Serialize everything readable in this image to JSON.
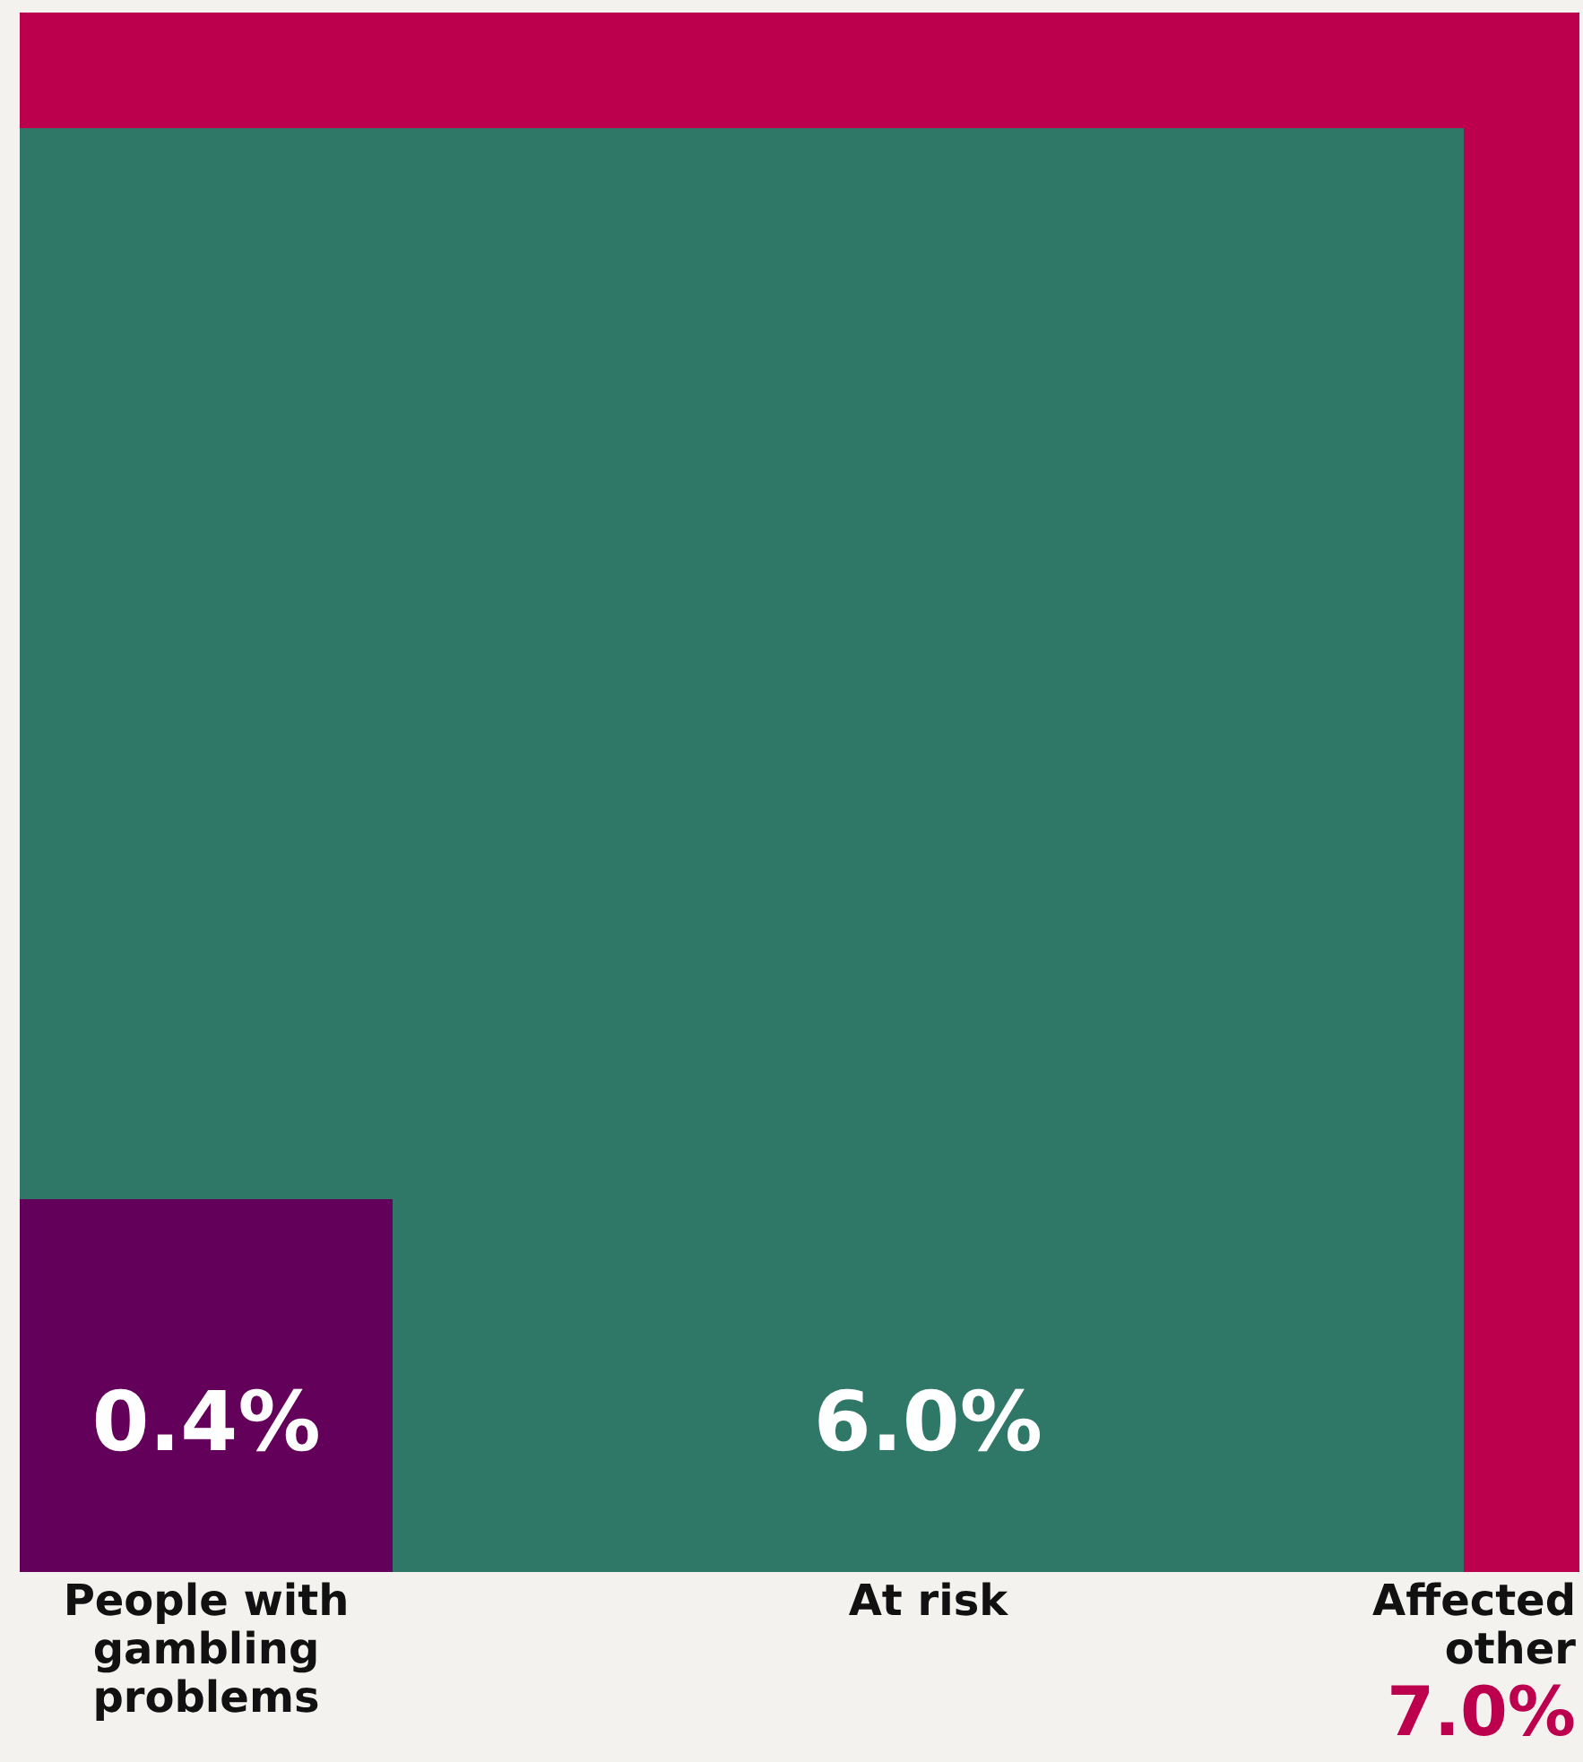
{
  "chart_data": {
    "type": "other",
    "categories": [
      "People with gambling problems",
      "At risk",
      "Affected other"
    ],
    "values": [
      0.4,
      6.0,
      7.0
    ],
    "value_labels": [
      "0.4%",
      "6.0%",
      "7.0%"
    ],
    "colors": [
      "#62005a",
      "#2f7868",
      "#bc004e"
    ]
  }
}
